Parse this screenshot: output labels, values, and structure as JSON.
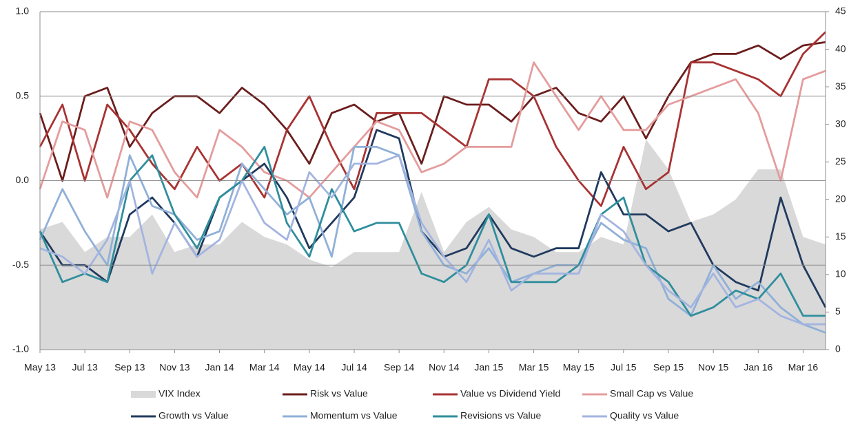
{
  "chart_data": {
    "type": "line",
    "categories": [
      "May 13",
      null,
      "Jul 13",
      null,
      "Sep 13",
      null,
      "Nov 13",
      null,
      "Jan 14",
      null,
      "Mar 14",
      null,
      "May 14",
      null,
      "Jul 14",
      null,
      "Sep 14",
      null,
      "Nov 14",
      null,
      "Jan 15",
      null,
      "Mar 15",
      null,
      "May 15",
      null,
      "Jul 15",
      null,
      "Sep 15",
      null,
      "Nov 15",
      null,
      "Jan 16",
      null,
      "Mar 16",
      null
    ],
    "ylim": [
      -1,
      1
    ],
    "yticks": [
      {
        "value": -1,
        "label": "-1.0"
      },
      {
        "value": -0.5,
        "label": "-0.5"
      },
      {
        "value": 0,
        "label": "0.0"
      },
      {
        "value": 0.5,
        "label": "0.5"
      },
      {
        "value": 1,
        "label": "1.0"
      }
    ],
    "y2lim": [
      0,
      45
    ],
    "y2ticks": [
      0,
      5,
      10,
      15,
      20,
      25,
      30,
      35,
      40,
      45
    ],
    "grid": true,
    "legend": "bottom",
    "series": [
      {
        "name": "VIX Index",
        "color": "#d9d9d9",
        "axis": "y2",
        "style": "area",
        "values": [
          16,
          17,
          13,
          15,
          15,
          18,
          13,
          14,
          14,
          17,
          15,
          14,
          12,
          11,
          13,
          13,
          13,
          21,
          13,
          17,
          19,
          16,
          15,
          13,
          13,
          15,
          14,
          28,
          24,
          17,
          18,
          20,
          24,
          24,
          15,
          14
        ]
      },
      {
        "name": "Risk vs Value",
        "color": "#6b1d1d",
        "values": [
          0.4,
          0.0,
          0.5,
          0.55,
          0.2,
          0.4,
          0.5,
          0.5,
          0.4,
          0.55,
          0.45,
          0.3,
          0.1,
          0.4,
          0.45,
          0.35,
          0.4,
          0.1,
          0.5,
          0.45,
          0.45,
          0.35,
          0.5,
          0.55,
          0.4,
          0.35,
          0.5,
          0.25,
          0.5,
          0.7,
          0.75,
          0.75,
          0.8,
          0.72,
          0.8,
          0.82
        ]
      },
      {
        "name": "Value vs Dividend Yield",
        "color": "#a83232",
        "values": [
          0.2,
          0.45,
          0.0,
          0.45,
          0.3,
          0.1,
          -0.05,
          0.2,
          0.0,
          0.1,
          -0.1,
          0.3,
          0.5,
          0.2,
          -0.05,
          0.4,
          0.4,
          0.4,
          0.3,
          0.2,
          0.6,
          0.6,
          0.5,
          0.2,
          0.0,
          -0.15,
          0.2,
          -0.05,
          0.05,
          0.7,
          0.7,
          0.65,
          0.6,
          0.5,
          0.75,
          0.88
        ]
      },
      {
        "name": "Small Cap vs Value",
        "color": "#e49c9c",
        "values": [
          -0.05,
          0.35,
          0.3,
          -0.1,
          0.35,
          0.3,
          0.05,
          -0.1,
          0.3,
          0.2,
          0.05,
          0.0,
          -0.1,
          0.05,
          0.2,
          0.35,
          0.3,
          0.05,
          0.1,
          0.2,
          0.2,
          0.2,
          0.7,
          0.5,
          0.3,
          0.5,
          0.3,
          0.3,
          0.45,
          0.5,
          0.55,
          0.6,
          0.4,
          0.0,
          0.6,
          0.65
        ]
      },
      {
        "name": "Growth vs Value",
        "color": "#203a5e",
        "values": [
          -0.3,
          -0.5,
          -0.5,
          -0.6,
          -0.2,
          -0.1,
          -0.25,
          -0.45,
          -0.1,
          0.0,
          0.1,
          -0.1,
          -0.4,
          -0.25,
          -0.1,
          0.3,
          0.25,
          -0.3,
          -0.45,
          -0.4,
          -0.2,
          -0.4,
          -0.45,
          -0.4,
          -0.4,
          0.05,
          -0.2,
          -0.2,
          -0.3,
          -0.25,
          -0.5,
          -0.6,
          -0.65,
          -0.1,
          -0.5,
          -0.75
        ]
      },
      {
        "name": "Momentum vs Value",
        "color": "#8fb0d8",
        "values": [
          -0.35,
          -0.05,
          -0.3,
          -0.5,
          0.15,
          -0.15,
          -0.2,
          -0.35,
          -0.3,
          0.1,
          -0.05,
          -0.2,
          -0.1,
          -0.45,
          0.2,
          0.2,
          0.15,
          -0.3,
          -0.5,
          -0.55,
          -0.4,
          -0.6,
          -0.55,
          -0.5,
          -0.5,
          -0.25,
          -0.35,
          -0.4,
          -0.7,
          -0.8,
          -0.5,
          -0.7,
          -0.6,
          -0.75,
          -0.85,
          -0.9
        ]
      },
      {
        "name": "Revisions vs Value",
        "color": "#2f8e9c",
        "values": [
          -0.3,
          -0.6,
          -0.55,
          -0.6,
          0.0,
          0.15,
          -0.2,
          -0.4,
          -0.1,
          0.0,
          0.2,
          -0.25,
          -0.45,
          -0.05,
          -0.3,
          -0.25,
          -0.25,
          -0.55,
          -0.6,
          -0.5,
          -0.2,
          -0.6,
          -0.6,
          -0.6,
          -0.5,
          -0.2,
          -0.1,
          -0.5,
          -0.6,
          -0.8,
          -0.75,
          -0.65,
          -0.7,
          -0.55,
          -0.8,
          -0.8
        ]
      },
      {
        "name": "Quality vs Value",
        "color": "#a3b4e0",
        "values": [
          -0.4,
          -0.45,
          -0.55,
          -0.35,
          0.0,
          -0.55,
          -0.25,
          -0.45,
          -0.35,
          0.0,
          -0.25,
          -0.35,
          0.05,
          -0.1,
          0.1,
          0.1,
          0.15,
          -0.25,
          -0.45,
          -0.6,
          -0.35,
          -0.65,
          -0.55,
          -0.55,
          -0.55,
          -0.2,
          -0.3,
          -0.5,
          -0.65,
          -0.75,
          -0.55,
          -0.75,
          -0.7,
          -0.8,
          -0.85,
          -0.85
        ]
      }
    ]
  }
}
